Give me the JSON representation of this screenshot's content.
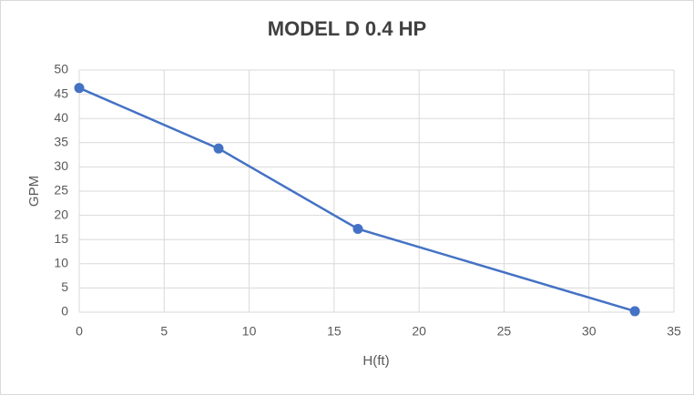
{
  "chart_data": {
    "type": "line",
    "title": "MODEL D 0.4 HP",
    "x_label": "H(ft)",
    "y_label": "GPM",
    "x": [
      0,
      8.2,
      16.4,
      32.7
    ],
    "values": [
      46.3,
      33.8,
      17.2,
      0.2
    ],
    "color": "#4472c4",
    "xlim": [
      0,
      35
    ],
    "xticks": [
      0,
      5,
      10,
      15,
      20,
      25,
      30,
      35
    ],
    "ylim": [
      0,
      50
    ],
    "yticks": [
      0,
      5,
      10,
      15,
      20,
      25,
      30,
      35,
      40,
      45,
      50
    ],
    "grid": true
  }
}
